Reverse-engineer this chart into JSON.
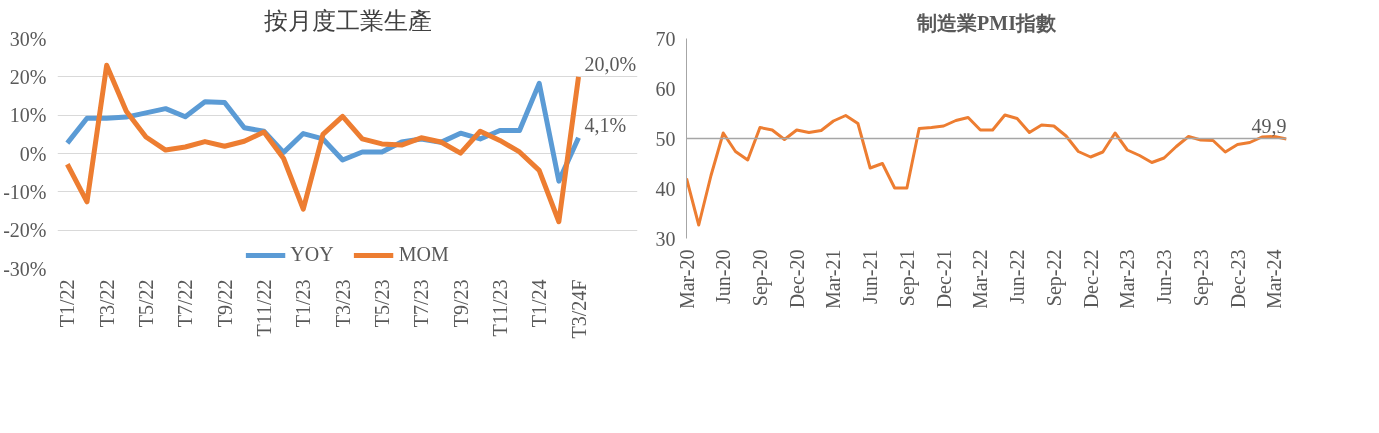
{
  "chart_data": [
    {
      "type": "line",
      "title": "按月度工業生產",
      "categories": [
        "T1/22",
        null,
        "T3/22",
        null,
        "T5/22",
        null,
        "T7/22",
        null,
        "T9/22",
        null,
        "T11/22",
        null,
        "T1/23",
        null,
        "T3/23",
        null,
        "T5/23",
        null,
        "T7/23",
        null,
        "T9/23",
        null,
        "T11/23",
        null,
        "T1/24",
        null,
        "T3/24F"
      ],
      "series": [
        {
          "name": "YOY",
          "color": "#5b9bd5",
          "values": [
            2.7,
            9.2,
            9.2,
            9.5,
            10.6,
            11.7,
            9.6,
            13.5,
            13.3,
            6.7,
            5.8,
            0.3,
            5.2,
            3.8,
            -1.7,
            0.4,
            0.4,
            3.0,
            3.8,
            2.9,
            5.3,
            3.8,
            6.0,
            6.0,
            18.3,
            -7.2,
            4.1
          ],
          "value_labels": [
            null,
            null,
            null,
            null,
            null,
            null,
            null,
            null,
            null,
            null,
            null,
            null,
            null,
            null,
            null,
            null,
            null,
            null,
            null,
            null,
            null,
            null,
            null,
            null,
            null,
            null,
            "4,1%"
          ]
        },
        {
          "name": "MOM",
          "color": "#ed7d31",
          "values": [
            -2.8,
            -12.6,
            23.0,
            11.0,
            4.3,
            0.9,
            1.7,
            3.1,
            1.9,
            3.2,
            5.6,
            -1.3,
            -14.5,
            5.0,
            9.7,
            3.8,
            2.5,
            2.2,
            4.1,
            3.0,
            0.1,
            5.8,
            3.4,
            0.4,
            -4.4,
            -17.8,
            20.0
          ],
          "value_labels": [
            null,
            null,
            null,
            null,
            null,
            null,
            null,
            null,
            null,
            null,
            null,
            null,
            null,
            null,
            null,
            null,
            null,
            null,
            null,
            null,
            null,
            null,
            null,
            null,
            null,
            null,
            "20,0%"
          ]
        }
      ],
      "ylim": [
        -30,
        30
      ],
      "yticks": [
        {
          "value": -30,
          "label": "-30%"
        },
        {
          "value": -20,
          "label": "-20%"
        },
        {
          "value": -10,
          "label": "-10%"
        },
        {
          "value": 0,
          "label": "0%"
        },
        {
          "value": 10,
          "label": "10%"
        },
        {
          "value": 20,
          "label": "20%"
        },
        {
          "value": 30,
          "label": "30%"
        }
      ],
      "grid": "y",
      "legend": "bottom"
    },
    {
      "type": "line",
      "title": "制造業PMI指數",
      "x": [
        "2020-03",
        "2020-04",
        "2020-05",
        "2020-06",
        "2020-07",
        "2020-08",
        "2020-09",
        "2020-10",
        "2020-11",
        "2020-12",
        "2021-01",
        "2021-02",
        "2021-03",
        "2021-04",
        "2021-05",
        "2021-06",
        "2021-07",
        "2021-08",
        "2021-09",
        "2021-10",
        "2021-11",
        "2021-12",
        "2022-01",
        "2022-02",
        "2022-03",
        "2022-04",
        "2022-05",
        "2022-06",
        "2022-07",
        "2022-08",
        "2022-09",
        "2022-10",
        "2022-11",
        "2022-12",
        "2023-01",
        "2023-02",
        "2023-03",
        "2023-04",
        "2023-05",
        "2023-06",
        "2023-07",
        "2023-08",
        "2023-09",
        "2023-10",
        "2023-11",
        "2023-12",
        "2024-01",
        "2024-02",
        "2024-03",
        "2024-04"
      ],
      "series": [
        {
          "color": "#ed7d31",
          "values": [
            42.0,
            32.7,
            42.6,
            51.1,
            47.4,
            45.7,
            52.2,
            51.7,
            49.8,
            51.7,
            51.2,
            51.6,
            53.5,
            54.6,
            53.0,
            44.1,
            45.0,
            40.1,
            40.1,
            52.0,
            52.2,
            52.5,
            53.6,
            54.2,
            51.7,
            51.7,
            54.7,
            54.0,
            51.2,
            52.7,
            52.5,
            50.5,
            47.4,
            46.3,
            47.3,
            51.1,
            47.7,
            46.6,
            45.2,
            46.1,
            48.4,
            50.4,
            49.7,
            49.6,
            47.3,
            48.8,
            49.2,
            50.3,
            50.4,
            49.9
          ],
          "value_labels": [
            null,
            null,
            null,
            null,
            null,
            null,
            null,
            null,
            null,
            null,
            null,
            null,
            null,
            null,
            null,
            null,
            null,
            null,
            null,
            null,
            null,
            null,
            null,
            null,
            null,
            null,
            null,
            null,
            null,
            null,
            null,
            null,
            null,
            null,
            null,
            null,
            null,
            null,
            null,
            null,
            null,
            null,
            null,
            null,
            null,
            null,
            null,
            null,
            null,
            "49,9"
          ]
        }
      ],
      "xlim": [
        "2020-03",
        "2024-04"
      ],
      "xticks": [
        {
          "value": "2020-03",
          "label": "Mar-20"
        },
        {
          "value": "2020-06",
          "label": "Jun-20"
        },
        {
          "value": "2020-09",
          "label": "Sep-20"
        },
        {
          "value": "2020-12",
          "label": "Dec-20"
        },
        {
          "value": "2021-03",
          "label": "Mar-21"
        },
        {
          "value": "2021-06",
          "label": "Jun-21"
        },
        {
          "value": "2021-09",
          "label": "Sep-21"
        },
        {
          "value": "2021-12",
          "label": "Dec-21"
        },
        {
          "value": "2022-03",
          "label": "Mar-22"
        },
        {
          "value": "2022-06",
          "label": "Jun-22"
        },
        {
          "value": "2022-09",
          "label": "Sep-22"
        },
        {
          "value": "2022-12",
          "label": "Dec-22"
        },
        {
          "value": "2023-03",
          "label": "Mar-23"
        },
        {
          "value": "2023-06",
          "label": "Jun-23"
        },
        {
          "value": "2023-09",
          "label": "Sep-23"
        },
        {
          "value": "2023-12",
          "label": "Dec-23"
        },
        {
          "value": "2024-03",
          "label": "Mar-24"
        }
      ],
      "ylim": [
        30,
        70
      ],
      "yticks": [
        30,
        40,
        50,
        60,
        70
      ],
      "ref_lines": [
        {
          "axis": "y",
          "value": 50,
          "color": "#a6a6a6"
        }
      ]
    }
  ]
}
